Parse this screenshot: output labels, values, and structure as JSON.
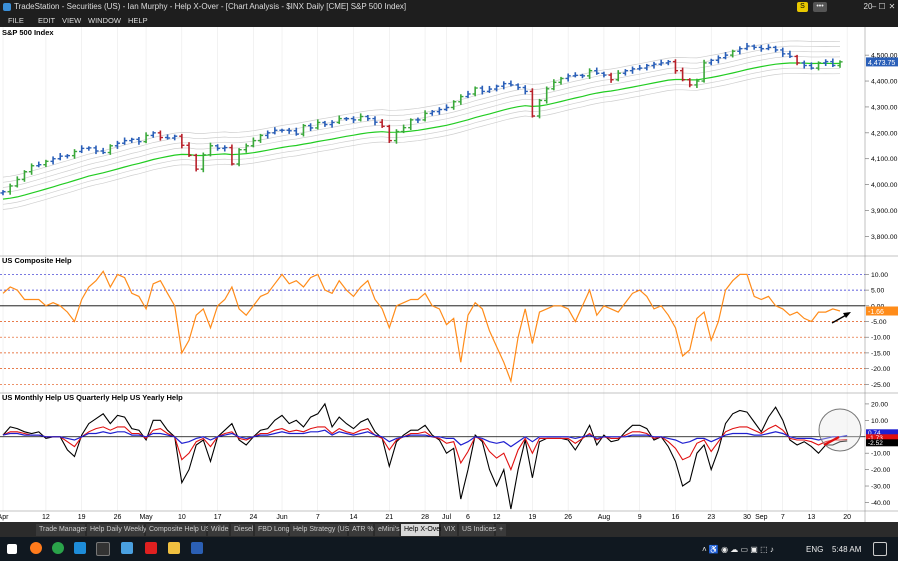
{
  "window": {
    "title": "TradeStation   - Securities (US)  - Ian Murphy - Help X-Over - [Chart Analysis - $INX Daily [CME] S&P 500 Index]",
    "badge_s": "S",
    "badge_dots": "•••",
    "notif_count": "20",
    "controls": [
      "–",
      "☐",
      "✕"
    ]
  },
  "menu": [
    "FILE",
    "EDIT",
    "VIEW",
    "WINDOW",
    "HELP"
  ],
  "panels": {
    "price": {
      "label": "S&P 500 Index",
      "last": "4,473.75"
    },
    "composite": {
      "label": "US Composite Help",
      "last": "-1.66"
    },
    "mqy": {
      "label": "US Monthly Help  US Quarterly Help  US Yearly Help",
      "last_blue": "0.74",
      "last_red": "-1.73",
      "last_black": "-2.52"
    }
  },
  "chart_data": [
    {
      "type": "line",
      "title": "S&P 500 Index",
      "ylim": [
        3740,
        4570
      ],
      "yticks": [
        3800,
        3900,
        4000,
        4100,
        4200,
        4300,
        4400,
        4500
      ],
      "ytick_labels": [
        "3,800.00",
        "3,900.00",
        "4,000.00",
        "4,100.00",
        "4,200.00",
        "4,300.00",
        "4,400.00",
        "4,500.00"
      ],
      "xticks": [
        {
          "label": "Apr",
          "i": 0
        },
        {
          "label": "12",
          "i": 6
        },
        {
          "label": "19",
          "i": 11
        },
        {
          "label": "26",
          "i": 16
        },
        {
          "label": "May",
          "i": 20
        },
        {
          "label": "10",
          "i": 25
        },
        {
          "label": "17",
          "i": 30
        },
        {
          "label": "24",
          "i": 35
        },
        {
          "label": "Jun",
          "i": 39
        },
        {
          "label": "7",
          "i": 44
        },
        {
          "label": "14",
          "i": 49
        },
        {
          "label": "21",
          "i": 54
        },
        {
          "label": "28",
          "i": 59
        },
        {
          "label": "Jul",
          "i": 62
        },
        {
          "label": "6",
          "i": 65
        },
        {
          "label": "12",
          "i": 69
        },
        {
          "label": "19",
          "i": 74
        },
        {
          "label": "26",
          "i": 79
        },
        {
          "label": "Aug",
          "i": 84
        },
        {
          "label": "9",
          "i": 89
        },
        {
          "label": "16",
          "i": 94
        },
        {
          "label": "23",
          "i": 99
        },
        {
          "label": "30",
          "i": 104
        },
        {
          "label": "Sep",
          "i": 106
        },
        {
          "label": "7",
          "i": 109
        },
        {
          "label": "13",
          "i": 113
        },
        {
          "label": "20",
          "i": 118
        }
      ],
      "bar_colors": {
        "green": "#3aa83a",
        "blue": "#2a5fb8",
        "red": "#b8202a",
        "ma": "#22cc22"
      },
      "close": [
        3973,
        3995,
        4020,
        4050,
        4073,
        4077,
        4090,
        4100,
        4110,
        4112,
        4128,
        4140,
        4142,
        4130,
        4124,
        4150,
        4160,
        4170,
        4175,
        4166,
        4190,
        4200,
        4182,
        4180,
        4187,
        4152,
        4113,
        4060,
        4115,
        4150,
        4140,
        4143,
        4080,
        4135,
        4150,
        4170,
        4190,
        4200,
        4210,
        4210,
        4208,
        4195,
        4228,
        4219,
        4240,
        4232,
        4240,
        4255,
        4255,
        4250,
        4263,
        4255,
        4241,
        4225,
        4170,
        4205,
        4220,
        4250,
        4250,
        4275,
        4282,
        4290,
        4298,
        4320,
        4340,
        4350,
        4373,
        4360,
        4369,
        4380,
        4390,
        4385,
        4375,
        4360,
        4265,
        4325,
        4370,
        4395,
        4410,
        4420,
        4422,
        4420,
        4440,
        4430,
        4423,
        4405,
        4430,
        4440,
        4447,
        4450,
        4460,
        4465,
        4470,
        4475,
        4440,
        4405,
        4385,
        4400,
        4470,
        4480,
        4490,
        4500,
        4515,
        4525,
        4535,
        4530,
        4525,
        4530,
        4520,
        4505,
        4495,
        4470,
        4460,
        4450,
        4470,
        4475,
        4460,
        4474
      ],
      "ma_start": 3942,
      "envelope_offsets": [
        -40,
        -20,
        25,
        45,
        65,
        85
      ]
    },
    {
      "type": "line",
      "title": "US Composite Help",
      "ylim": [
        -26.5,
        13
      ],
      "yticks": [
        10,
        5,
        0,
        -5,
        -10,
        -15,
        -20,
        -25
      ],
      "ytick_labels": [
        "10.00",
        "5.00",
        "0.00",
        "-5.00",
        "-10.00",
        "-15.00",
        "-20.00",
        "-25.00"
      ],
      "hlines": [
        {
          "y": 10,
          "color": "#2a2ad0"
        },
        {
          "y": 5,
          "color": "#2a2ad0"
        },
        {
          "y": 0,
          "color": "#000000"
        },
        {
          "y": -5,
          "color": "#e05010"
        },
        {
          "y": -10,
          "color": "#e05010"
        },
        {
          "y": -15,
          "color": "#e05010"
        },
        {
          "y": -20,
          "color": "#e05010"
        },
        {
          "y": -25,
          "color": "#e05010"
        }
      ],
      "series": [
        {
          "color": "#ff8c1a",
          "values": [
            4,
            6,
            5,
            2,
            2,
            2,
            0,
            1,
            0,
            -2,
            -5,
            2,
            6,
            8,
            11,
            6,
            10,
            9,
            4,
            3,
            -1,
            7,
            8,
            4,
            0,
            -15,
            -11,
            -3,
            -1,
            -7,
            0,
            2,
            6,
            -1,
            -3,
            0,
            3,
            4,
            7,
            10,
            7,
            8,
            6,
            9,
            10,
            5,
            4,
            8,
            5,
            3,
            6,
            8,
            2,
            -1,
            -7,
            0,
            1,
            2,
            2,
            4,
            0,
            -1,
            -6,
            -4,
            -18,
            -3,
            1,
            -1,
            -8,
            -13,
            -18,
            -24,
            -10,
            -1,
            -12,
            -2,
            -1,
            0,
            0,
            -1,
            -5,
            0,
            5,
            -3,
            0,
            -1,
            -2,
            1,
            4,
            5,
            3,
            -1,
            0,
            -3,
            -7,
            -16,
            -14,
            -4,
            -2,
            -11,
            -5,
            5,
            8,
            10,
            10,
            3,
            2,
            3,
            0,
            -1,
            -3,
            -2,
            -4,
            -5,
            -2,
            -2,
            -1,
            -1.66
          ]
        }
      ]
    },
    {
      "type": "line",
      "title": "US Monthly Help  US Quarterly Help  US Yearly Help",
      "ylim": [
        -44,
        23
      ],
      "yticks": [
        20,
        10,
        0,
        -10,
        -20,
        -30,
        -40
      ],
      "ytick_labels": [
        "20.00",
        "10.00",
        "0.00",
        "-10.00",
        "-20.00",
        "-30.00",
        "-40.00"
      ],
      "series": [
        {
          "color": "#000000",
          "values": [
            1,
            6,
            5,
            3,
            2,
            3,
            -1,
            0,
            0,
            -8,
            -12,
            1,
            8,
            11,
            14,
            8,
            13,
            12,
            5,
            4,
            -2,
            10,
            10,
            4,
            0,
            -28,
            -20,
            -5,
            -2,
            -15,
            0,
            4,
            8,
            -2,
            -5,
            0,
            4,
            5,
            10,
            13,
            8,
            10,
            6,
            12,
            14,
            20,
            6,
            12,
            8,
            5,
            9,
            11,
            3,
            -1,
            -18,
            -3,
            1,
            4,
            4,
            7,
            1,
            -2,
            -10,
            -7,
            -38,
            -20,
            1,
            -3,
            -20,
            -30,
            -20,
            -44,
            -20,
            -2,
            -25,
            -3,
            -1,
            -1,
            -1,
            -2,
            -8,
            -1,
            7,
            -5,
            1,
            -3,
            -2,
            3,
            7,
            7,
            5,
            -2,
            0,
            -6,
            -15,
            -30,
            -27,
            -10,
            -5,
            -20,
            -8,
            8,
            14,
            16,
            15,
            9,
            3,
            12,
            18,
            10,
            -2,
            -5,
            -3,
            -6,
            -10,
            -5,
            -5,
            -3,
            -2.52
          ]
        },
        {
          "color": "#e01010",
          "values": [
            1,
            3,
            3,
            2,
            1,
            1,
            0,
            0,
            0,
            -3,
            -6,
            0,
            3,
            5,
            6,
            4,
            6,
            6,
            2,
            2,
            -1,
            4,
            5,
            2,
            0,
            -14,
            -10,
            -3,
            -1,
            -6,
            0,
            2,
            3,
            -1,
            -2,
            0,
            2,
            2,
            4,
            5,
            3,
            4,
            3,
            5,
            6,
            6,
            2,
            5,
            3,
            2,
            4,
            5,
            1,
            -1,
            -8,
            -2,
            0,
            2,
            2,
            3,
            0,
            -1,
            -4,
            -3,
            -16,
            -9,
            0,
            -2,
            -9,
            -13,
            -10,
            -20,
            -8,
            -1,
            -10,
            -1,
            -1,
            -1,
            -1,
            -1,
            -4,
            -1,
            2,
            -2,
            0,
            -1,
            -1,
            1,
            3,
            3,
            2,
            -1,
            0,
            -3,
            -7,
            -14,
            -12,
            -4,
            -2,
            -9,
            -3,
            3,
            5,
            6,
            6,
            4,
            2,
            5,
            7,
            4,
            -1,
            -2,
            -2,
            -3,
            -5,
            -3,
            -2,
            -2,
            -1.73
          ]
        },
        {
          "color": "#2020d0",
          "values": [
            1,
            2,
            2,
            1,
            1,
            1,
            0,
            0,
            0,
            -1,
            -2,
            0,
            2,
            2,
            3,
            2,
            3,
            3,
            1,
            1,
            0,
            2,
            2,
            1,
            0,
            -4,
            -3,
            -1,
            0,
            -2,
            0,
            1,
            2,
            0,
            -1,
            0,
            1,
            1,
            2,
            3,
            2,
            2,
            2,
            3,
            3,
            4,
            1,
            3,
            2,
            1,
            2,
            3,
            1,
            0,
            -3,
            -1,
            0,
            1,
            1,
            1,
            0,
            0,
            -1,
            -1,
            -5,
            -3,
            0,
            -1,
            -3,
            -4,
            -3,
            -6,
            -3,
            0,
            -3,
            0,
            0,
            0,
            0,
            0,
            -1,
            0,
            1,
            -1,
            0,
            0,
            0,
            0,
            1,
            1,
            1,
            0,
            0,
            -1,
            -2,
            -4,
            -3,
            -1,
            -1,
            -3,
            -1,
            1,
            2,
            2,
            2,
            1,
            1,
            2,
            3,
            2,
            0,
            -1,
            -1,
            -1,
            -2,
            -1,
            0,
            0,
            0.74
          ]
        }
      ]
    }
  ],
  "tabs": [
    "Trade Manager",
    "Help Daily Weekly",
    "Composite Help US",
    "Wilde",
    "Diesel",
    "FBD Long",
    "Help Strategy (US)",
    "ATR %",
    "eMini's",
    "Help X-Over",
    "VIX",
    "US Indices",
    "+"
  ],
  "active_tab": "Help X-Over",
  "taskbar": {
    "lang": "ENG",
    "time": "5:48 AM",
    "tray": "˄  ♿  ◉  ☁  ▭  ▣  ⬚  ♪"
  },
  "icons": [
    "tradestation-logo-icon",
    "windows-start-icon",
    "firefox-icon",
    "chrome-icon",
    "app-icon",
    "tradestation-icon",
    "calc-icon",
    "folder-icon",
    "word-icon",
    "notification-icon"
  ]
}
